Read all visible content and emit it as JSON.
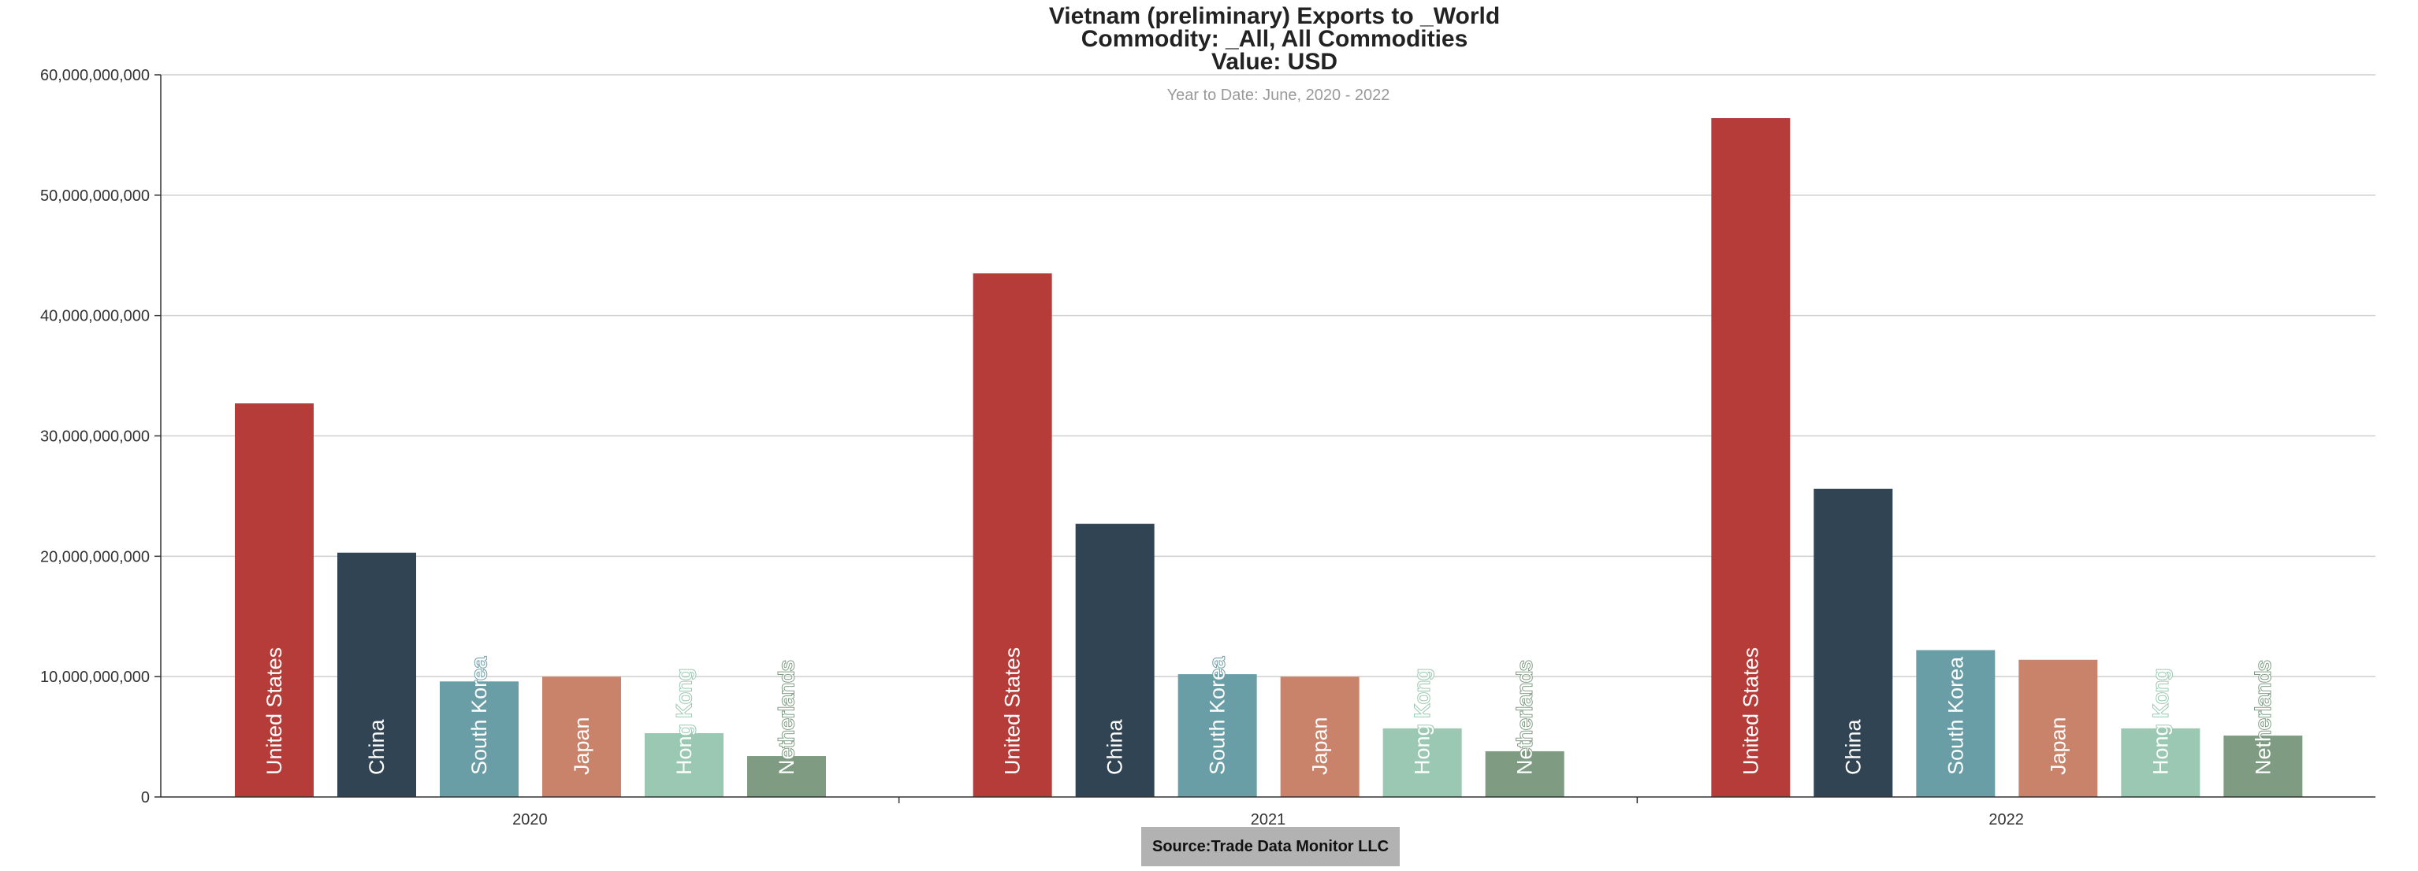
{
  "chart_data": {
    "type": "bar",
    "title_lines": [
      "Vietnam (preliminary) Exports to _World",
      "Commodity: _All, All Commodities",
      "Value: USD"
    ],
    "subtitle": "Year to Date: June, 2020 - 2022",
    "categories": [
      "2020",
      "2021",
      "2022"
    ],
    "series": [
      {
        "name": "United States",
        "color": "#b53c38",
        "label_color": "#ffffff",
        "values": [
          32700000000,
          43500000000,
          56400000000
        ]
      },
      {
        "name": "China",
        "color": "#314453",
        "label_color": "#ffffff",
        "values": [
          20300000000,
          22700000000,
          25600000000
        ]
      },
      {
        "name": "South Korea",
        "color": "#6a9ea6",
        "label_color": "#ffffff",
        "values": [
          9600000000,
          10200000000,
          12200000000
        ]
      },
      {
        "name": "Japan",
        "color": "#c9836a",
        "label_color": "#ffffff",
        "values": [
          10000000000,
          10000000000,
          11400000000
        ]
      },
      {
        "name": "Hong Kong",
        "color": "#9ac8b2",
        "label_color": "#ffffff",
        "values": [
          5300000000,
          5700000000,
          5700000000
        ]
      },
      {
        "name": "Netherlands",
        "color": "#7f9c83",
        "label_color": "#ffffff",
        "values": [
          3400000000,
          3800000000,
          5100000000
        ]
      }
    ],
    "y_ticks": [
      "0",
      "10,000,000,000",
      "20,000,000,000",
      "30,000,000,000",
      "40,000,000,000",
      "50,000,000,000",
      "60,000,000,000"
    ],
    "ylim": [
      0,
      60000000000
    ],
    "grid": true,
    "legend": "none",
    "xlabel": "",
    "ylabel": ""
  },
  "footer": {
    "source": "Source:Trade Data Monitor LLC"
  }
}
